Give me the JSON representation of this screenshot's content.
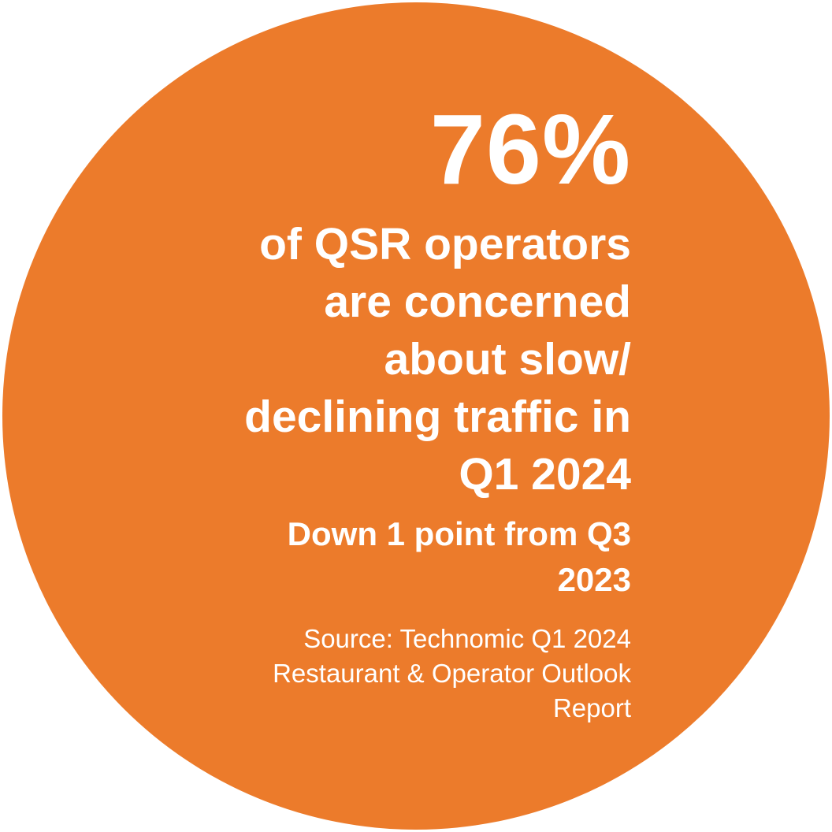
{
  "stat": {
    "value": "76%"
  },
  "headline": {
    "lines": [
      "of QSR operators",
      "are concerned",
      "about slow/",
      "declining traffic in",
      "Q1 2024"
    ]
  },
  "change_note": {
    "lines": [
      "Down 1 point from Q3",
      "2023"
    ]
  },
  "source": {
    "lines": [
      "Source: Technomic Q1 2024",
      "Restaurant & Operator Outlook",
      "Report"
    ]
  },
  "colors": {
    "circle": "#ec7b2b",
    "text": "#ffffff"
  }
}
